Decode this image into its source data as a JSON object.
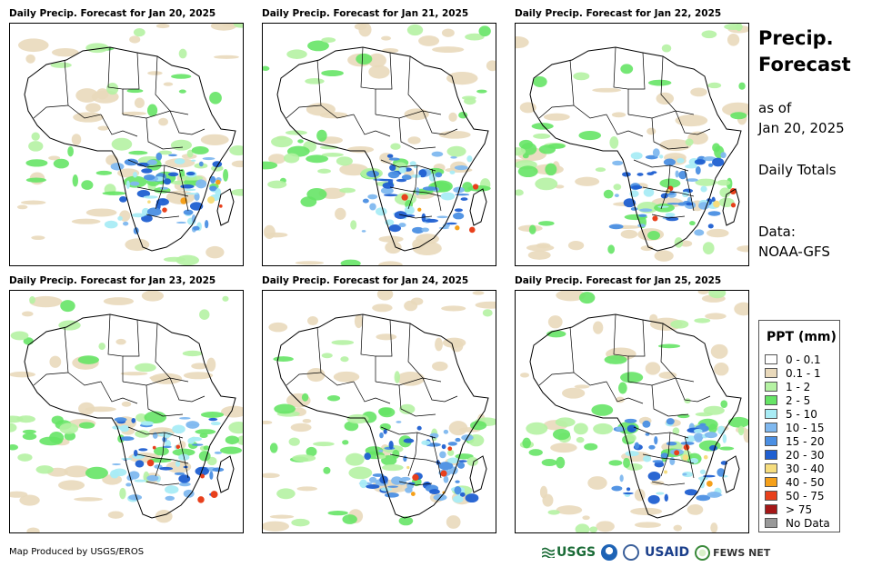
{
  "panels": [
    {
      "title": "Daily Precip. Forecast for Jan 20, 2025"
    },
    {
      "title": "Daily Precip. Forecast for Jan 21, 2025"
    },
    {
      "title": "Daily Precip. Forecast for Jan 22, 2025"
    },
    {
      "title": "Daily Precip. Forecast for Jan 23, 2025"
    },
    {
      "title": "Daily Precip. Forecast for Jan 24, 2025"
    },
    {
      "title": "Daily Precip. Forecast for Jan 25, 2025"
    }
  ],
  "side": {
    "title_line1": "Precip.",
    "title_line2": "Forecast",
    "as_of": "as of",
    "date": "Jan 20, 2025",
    "totals": "Daily Totals",
    "data_label": "Data:",
    "data_source": "NOAA-GFS"
  },
  "legend": {
    "title": "PPT (mm)",
    "items": [
      {
        "label": "0 - 0.1",
        "color": "#ffffff"
      },
      {
        "label": "0.1 - 1",
        "color": "#e9d9bb"
      },
      {
        "label": "1 - 2",
        "color": "#b5f2a3"
      },
      {
        "label": "2 - 5",
        "color": "#66e466"
      },
      {
        "label": "5 - 10",
        "color": "#a9ecf5"
      },
      {
        "label": "10 - 15",
        "color": "#7fb8ef"
      },
      {
        "label": "15 - 20",
        "color": "#4b8fe3"
      },
      {
        "label": "20 - 30",
        "color": "#1f5fd1"
      },
      {
        "label": "30 - 40",
        "color": "#f6dd7e"
      },
      {
        "label": "40 - 50",
        "color": "#f5a01a"
      },
      {
        "label": "50 - 75",
        "color": "#e8401c"
      },
      {
        "label": "> 75",
        "color": "#a51717"
      },
      {
        "label": "No Data",
        "color": "#999999"
      }
    ]
  },
  "footer": {
    "credit": "Map Produced by USGS/EROS",
    "logos": {
      "usgs": "USGS",
      "usaid": "USAID",
      "fewsnet": "FEWS NET"
    }
  }
}
